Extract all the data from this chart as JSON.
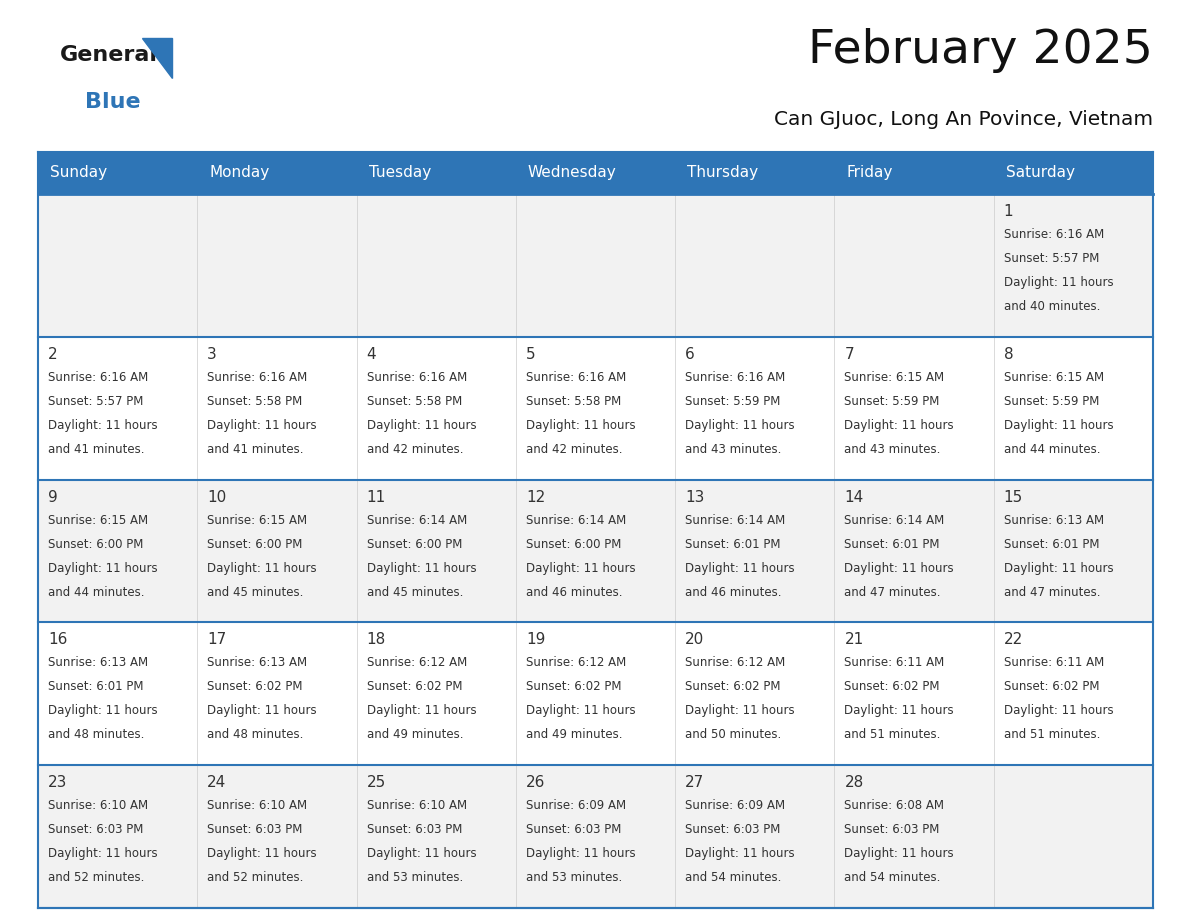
{
  "title": "February 2025",
  "subtitle": "Can GJuoc, Long An Povince, Vietnam",
  "header_color": "#2E75B6",
  "header_text_color": "#FFFFFF",
  "bg_color": "#FFFFFF",
  "text_color": "#333333",
  "days_of_week": [
    "Sunday",
    "Monday",
    "Tuesday",
    "Wednesday",
    "Thursday",
    "Friday",
    "Saturday"
  ],
  "calendar": [
    [
      {
        "day": "",
        "sunrise": "",
        "sunset": "",
        "daylight_l1": "",
        "daylight_l2": ""
      },
      {
        "day": "",
        "sunrise": "",
        "sunset": "",
        "daylight_l1": "",
        "daylight_l2": ""
      },
      {
        "day": "",
        "sunrise": "",
        "sunset": "",
        "daylight_l1": "",
        "daylight_l2": ""
      },
      {
        "day": "",
        "sunrise": "",
        "sunset": "",
        "daylight_l1": "",
        "daylight_l2": ""
      },
      {
        "day": "",
        "sunrise": "",
        "sunset": "",
        "daylight_l1": "",
        "daylight_l2": ""
      },
      {
        "day": "",
        "sunrise": "",
        "sunset": "",
        "daylight_l1": "",
        "daylight_l2": ""
      },
      {
        "day": "1",
        "sunrise": "Sunrise: 6:16 AM",
        "sunset": "Sunset: 5:57 PM",
        "daylight_l1": "Daylight: 11 hours",
        "daylight_l2": "and 40 minutes."
      }
    ],
    [
      {
        "day": "2",
        "sunrise": "Sunrise: 6:16 AM",
        "sunset": "Sunset: 5:57 PM",
        "daylight_l1": "Daylight: 11 hours",
        "daylight_l2": "and 41 minutes."
      },
      {
        "day": "3",
        "sunrise": "Sunrise: 6:16 AM",
        "sunset": "Sunset: 5:58 PM",
        "daylight_l1": "Daylight: 11 hours",
        "daylight_l2": "and 41 minutes."
      },
      {
        "day": "4",
        "sunrise": "Sunrise: 6:16 AM",
        "sunset": "Sunset: 5:58 PM",
        "daylight_l1": "Daylight: 11 hours",
        "daylight_l2": "and 42 minutes."
      },
      {
        "day": "5",
        "sunrise": "Sunrise: 6:16 AM",
        "sunset": "Sunset: 5:58 PM",
        "daylight_l1": "Daylight: 11 hours",
        "daylight_l2": "and 42 minutes."
      },
      {
        "day": "6",
        "sunrise": "Sunrise: 6:16 AM",
        "sunset": "Sunset: 5:59 PM",
        "daylight_l1": "Daylight: 11 hours",
        "daylight_l2": "and 43 minutes."
      },
      {
        "day": "7",
        "sunrise": "Sunrise: 6:15 AM",
        "sunset": "Sunset: 5:59 PM",
        "daylight_l1": "Daylight: 11 hours",
        "daylight_l2": "and 43 minutes."
      },
      {
        "day": "8",
        "sunrise": "Sunrise: 6:15 AM",
        "sunset": "Sunset: 5:59 PM",
        "daylight_l1": "Daylight: 11 hours",
        "daylight_l2": "and 44 minutes."
      }
    ],
    [
      {
        "day": "9",
        "sunrise": "Sunrise: 6:15 AM",
        "sunset": "Sunset: 6:00 PM",
        "daylight_l1": "Daylight: 11 hours",
        "daylight_l2": "and 44 minutes."
      },
      {
        "day": "10",
        "sunrise": "Sunrise: 6:15 AM",
        "sunset": "Sunset: 6:00 PM",
        "daylight_l1": "Daylight: 11 hours",
        "daylight_l2": "and 45 minutes."
      },
      {
        "day": "11",
        "sunrise": "Sunrise: 6:14 AM",
        "sunset": "Sunset: 6:00 PM",
        "daylight_l1": "Daylight: 11 hours",
        "daylight_l2": "and 45 minutes."
      },
      {
        "day": "12",
        "sunrise": "Sunrise: 6:14 AM",
        "sunset": "Sunset: 6:00 PM",
        "daylight_l1": "Daylight: 11 hours",
        "daylight_l2": "and 46 minutes."
      },
      {
        "day": "13",
        "sunrise": "Sunrise: 6:14 AM",
        "sunset": "Sunset: 6:01 PM",
        "daylight_l1": "Daylight: 11 hours",
        "daylight_l2": "and 46 minutes."
      },
      {
        "day": "14",
        "sunrise": "Sunrise: 6:14 AM",
        "sunset": "Sunset: 6:01 PM",
        "daylight_l1": "Daylight: 11 hours",
        "daylight_l2": "and 47 minutes."
      },
      {
        "day": "15",
        "sunrise": "Sunrise: 6:13 AM",
        "sunset": "Sunset: 6:01 PM",
        "daylight_l1": "Daylight: 11 hours",
        "daylight_l2": "and 47 minutes."
      }
    ],
    [
      {
        "day": "16",
        "sunrise": "Sunrise: 6:13 AM",
        "sunset": "Sunset: 6:01 PM",
        "daylight_l1": "Daylight: 11 hours",
        "daylight_l2": "and 48 minutes."
      },
      {
        "day": "17",
        "sunrise": "Sunrise: 6:13 AM",
        "sunset": "Sunset: 6:02 PM",
        "daylight_l1": "Daylight: 11 hours",
        "daylight_l2": "and 48 minutes."
      },
      {
        "day": "18",
        "sunrise": "Sunrise: 6:12 AM",
        "sunset": "Sunset: 6:02 PM",
        "daylight_l1": "Daylight: 11 hours",
        "daylight_l2": "and 49 minutes."
      },
      {
        "day": "19",
        "sunrise": "Sunrise: 6:12 AM",
        "sunset": "Sunset: 6:02 PM",
        "daylight_l1": "Daylight: 11 hours",
        "daylight_l2": "and 49 minutes."
      },
      {
        "day": "20",
        "sunrise": "Sunrise: 6:12 AM",
        "sunset": "Sunset: 6:02 PM",
        "daylight_l1": "Daylight: 11 hours",
        "daylight_l2": "and 50 minutes."
      },
      {
        "day": "21",
        "sunrise": "Sunrise: 6:11 AM",
        "sunset": "Sunset: 6:02 PM",
        "daylight_l1": "Daylight: 11 hours",
        "daylight_l2": "and 51 minutes."
      },
      {
        "day": "22",
        "sunrise": "Sunrise: 6:11 AM",
        "sunset": "Sunset: 6:02 PM",
        "daylight_l1": "Daylight: 11 hours",
        "daylight_l2": "and 51 minutes."
      }
    ],
    [
      {
        "day": "23",
        "sunrise": "Sunrise: 6:10 AM",
        "sunset": "Sunset: 6:03 PM",
        "daylight_l1": "Daylight: 11 hours",
        "daylight_l2": "and 52 minutes."
      },
      {
        "day": "24",
        "sunrise": "Sunrise: 6:10 AM",
        "sunset": "Sunset: 6:03 PM",
        "daylight_l1": "Daylight: 11 hours",
        "daylight_l2": "and 52 minutes."
      },
      {
        "day": "25",
        "sunrise": "Sunrise: 6:10 AM",
        "sunset": "Sunset: 6:03 PM",
        "daylight_l1": "Daylight: 11 hours",
        "daylight_l2": "and 53 minutes."
      },
      {
        "day": "26",
        "sunrise": "Sunrise: 6:09 AM",
        "sunset": "Sunset: 6:03 PM",
        "daylight_l1": "Daylight: 11 hours",
        "daylight_l2": "and 53 minutes."
      },
      {
        "day": "27",
        "sunrise": "Sunrise: 6:09 AM",
        "sunset": "Sunset: 6:03 PM",
        "daylight_l1": "Daylight: 11 hours",
        "daylight_l2": "and 54 minutes."
      },
      {
        "day": "28",
        "sunrise": "Sunrise: 6:08 AM",
        "sunset": "Sunset: 6:03 PM",
        "daylight_l1": "Daylight: 11 hours",
        "daylight_l2": "and 54 minutes."
      },
      {
        "day": "",
        "sunrise": "",
        "sunset": "",
        "daylight_l1": "",
        "daylight_l2": ""
      }
    ]
  ],
  "logo_general_color": "#1a1a1a",
  "logo_blue_color": "#2E75B6",
  "divider_color": "#2E75B6",
  "row_bg_odd": "#F2F2F2",
  "row_bg_even": "#FFFFFF"
}
